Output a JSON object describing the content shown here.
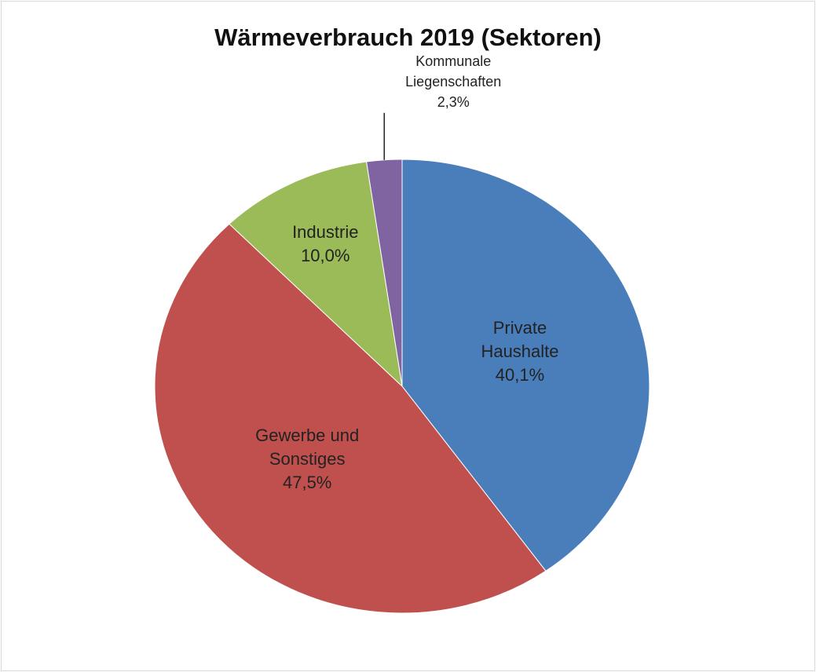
{
  "chart_data": {
    "type": "pie",
    "title": "Wärmeverbrauch 2019 (Sektoren)",
    "categories": [
      "Private Haushalte",
      "Gewerbe und Sonstiges",
      "Industrie",
      "Kommunale Liegenschaften"
    ],
    "values": [
      40.1,
      47.5,
      10.0,
      2.3
    ],
    "value_labels": [
      "40,1%",
      "47,5%",
      "10,0%",
      "2,3%"
    ],
    "colors": [
      "#4a7ebb",
      "#c0504d",
      "#9bbb59",
      "#8064a2"
    ]
  }
}
